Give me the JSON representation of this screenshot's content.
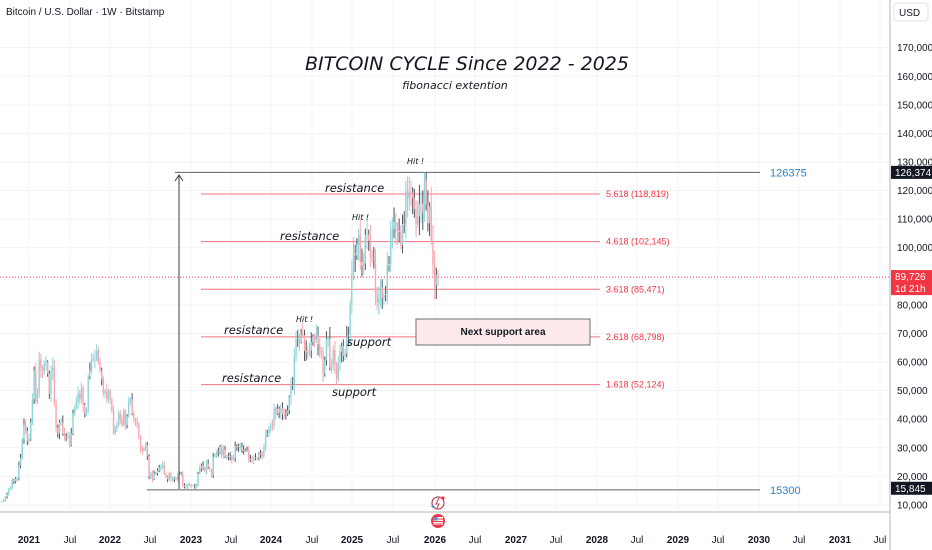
{
  "header": {
    "symbol": "Bitcoin / U.S. Dollar · 1W · Bitstamp"
  },
  "price_axis": {
    "currency": "USD",
    "ticks": [
      "170,000",
      "160,000",
      "150,000",
      "140,000",
      "130,000",
      "120,000",
      "110,000",
      "100,000",
      "80,000",
      "70,000",
      "60,000",
      "50,000",
      "40,000",
      "30,000",
      "20,000",
      "10,000"
    ],
    "tick_values": [
      170000,
      160000,
      150000,
      140000,
      130000,
      120000,
      110000,
      100000,
      80000,
      70000,
      60000,
      50000,
      40000,
      30000,
      20000,
      10000
    ],
    "high_marker": {
      "label": "126,374",
      "value": 126374
    },
    "low_marker": {
      "label": "15,845",
      "value": 15845
    },
    "last_price": {
      "label": "89,726",
      "countdown": "1d 21h",
      "value": 89726
    }
  },
  "time_axis": {
    "ticks": [
      "2021",
      "Jul",
      "2022",
      "Jul",
      "2023",
      "Jul",
      "2024",
      "Jul",
      "2025",
      "Jul",
      "2026",
      "Jul",
      "2027",
      "Jul",
      "2028",
      "Jul",
      "2029",
      "Jul",
      "2030",
      "Jul",
      "2031",
      "Jul"
    ]
  },
  "colors": {
    "up": "#8fd4d9",
    "down": "#f7a7ae",
    "fib": "#f23645",
    "last": "#f23645",
    "hline_label": "#2f7fc1"
  },
  "chart_data": {
    "type": "candlestick",
    "title": "BITCOIN CYCLE Since  2022 - 2025",
    "subtitle": "fibonacci extention",
    "interval": "1W",
    "start": "2020-10",
    "unit": "USD thousands (weekly close)",
    "closes": [
      11.3,
      11.5,
      13.0,
      13.8,
      15.5,
      16.0,
      18.7,
      18.2,
      19.2,
      19.2,
      23.8,
      26.5,
      33,
      38,
      36,
      32.3,
      33,
      39,
      47,
      57,
      46,
      49,
      61,
      58,
      57,
      59,
      60,
      56,
      49,
      57,
      58,
      46,
      37,
      35,
      39,
      39,
      35,
      34,
      34,
      34,
      31,
      35,
      42,
      44,
      46,
      49,
      47,
      51,
      45,
      42,
      43,
      55,
      57,
      61,
      61,
      61,
      64,
      60,
      57,
      54,
      49,
      50,
      47,
      50,
      47,
      43,
      35,
      37,
      38,
      42,
      40,
      38,
      43,
      38,
      41,
      46,
      47,
      42,
      40,
      39,
      38,
      34,
      30,
      29,
      30,
      31,
      27,
      20,
      21,
      19,
      21,
      21,
      22,
      23,
      23,
      24,
      21,
      20,
      19,
      21,
      19,
      19,
      19.5,
      19,
      20.5,
      20.6,
      21,
      16.8,
      16.3,
      16.5,
      17.2,
      17.1,
      16.8,
      16.8,
      16.5,
      17,
      20.9,
      22.7,
      23.8,
      22.9,
      21.8,
      24.5,
      23.2,
      22.4,
      20.5,
      26.9,
      27.5,
      28.5,
      28.3,
      30.3,
      27.6,
      29.3,
      26.9,
      27.2,
      26.9,
      27.1,
      25.9,
      26.3,
      30.6,
      30.5,
      30.3,
      30.3,
      29.2,
      29.3,
      29,
      29.1,
      26,
      26.1,
      25.9,
      26.6,
      26.6,
      26.3,
      28,
      27.9,
      26.9,
      29.9,
      34.5,
      35,
      37,
      37.8,
      37.7,
      43.8,
      41.9,
      43.7,
      42.3,
      43.9,
      41.7,
      41.6,
      42,
      43,
      47.8,
      52,
      51.6,
      62,
      68.3,
      68.4,
      67.2,
      69.6,
      69.4,
      63.9,
      63.4,
      63.1,
      64,
      67,
      69,
      67.7,
      69.3,
      66.2,
      64.2,
      62.7,
      55.9,
      60.8,
      68.2,
      68.3,
      58.1,
      58.7,
      64.2,
      59,
      54.2,
      60,
      63.6,
      65.6,
      62.1,
      62.9,
      69,
      69.4,
      80,
      90.5,
      98,
      97.3,
      101,
      104.5,
      95,
      93.7,
      94.5,
      104.5,
      104.7,
      102.4,
      96.5,
      96.1,
      96.3,
      84.3,
      80.7,
      82.6,
      86,
      82.4,
      83.5,
      83.8,
      93.7,
      94.3,
      104,
      106.5,
      109,
      105.7,
      106,
      105.5,
      100.9,
      108.3,
      108,
      119.8,
      117.3,
      119.4,
      119.3,
      117.4,
      113.5,
      108.3,
      111,
      115.4,
      115.5,
      112.2,
      123.5,
      115.2,
      108.6,
      114.5,
      102,
      94,
      87,
      90.5,
      89.7
    ],
    "horizontal_lines": [
      {
        "label": "126375",
        "value": 126375
      },
      {
        "label": "15300",
        "value": 15300
      }
    ],
    "fib_levels": [
      {
        "label": "5.618 (118,819)",
        "value": 118819
      },
      {
        "label": "4.618 (102,145)",
        "value": 102145
      },
      {
        "label": "3.618 (85,471)",
        "value": 85471
      },
      {
        "label": "2.618 (68,798)",
        "value": 68798
      },
      {
        "label": "1.618 (52,124)",
        "value": 52124
      }
    ],
    "annotations": {
      "resistance": "resistance",
      "support": "support",
      "hit": "Hit !",
      "support_box": "Next support area"
    },
    "ylim": [
      0,
      185000
    ],
    "grid": true
  }
}
